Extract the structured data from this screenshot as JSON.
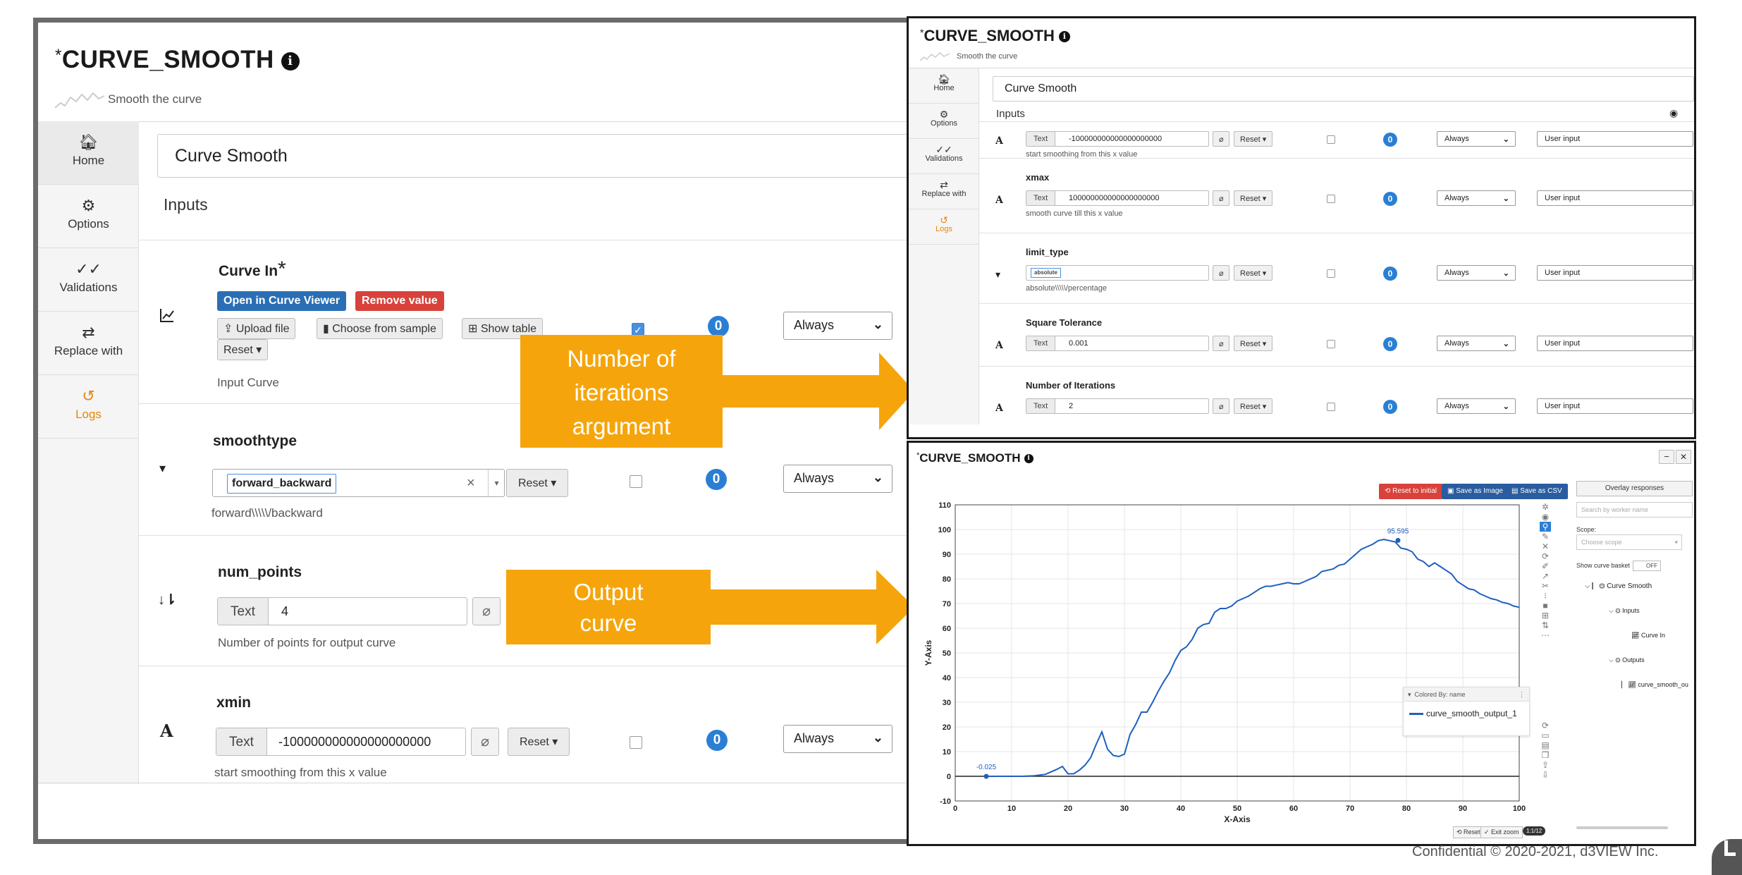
{
  "left": {
    "title": "CURVE_SMOOTH",
    "title_prefix": "*",
    "subtitle": "Smooth the curve",
    "sidebar": [
      {
        "label": "Home",
        "icon": "home-icon"
      },
      {
        "label": "Options",
        "icon": "gear-icon"
      },
      {
        "label": "Validations",
        "icon": "double-check-icon"
      },
      {
        "label": "Replace with",
        "icon": "swap-arrows-icon"
      },
      {
        "label": "Logs",
        "icon": "history-icon"
      }
    ],
    "name_value": "Curve Smooth",
    "inputs_label": "Inputs",
    "curve_in": {
      "title": "Curve In",
      "required_mark": "*",
      "open_viewer": "Open in Curve Viewer",
      "remove_value": "Remove value",
      "upload_file": "Upload file",
      "choose_sample": "Choose from sample",
      "show_table": "Show table",
      "reset": "Reset",
      "desc": "Input Curve",
      "badge": "0",
      "always": "Always"
    },
    "smoothtype": {
      "title": "smoothtype",
      "chip": "forward_backward",
      "clear": "×",
      "reset": "Reset",
      "desc": "forward\\\\\\\\\\/backward",
      "badge": "0",
      "always": "Always"
    },
    "num_points": {
      "title": "num_points",
      "prefix": "Text",
      "value": "4",
      "desc": "Number of points for output curve"
    },
    "xmin": {
      "title": "xmin",
      "prefix": "Text",
      "value": "-100000000000000000000",
      "reset": "Reset",
      "desc": "start smoothing from this x value",
      "badge": "0",
      "always": "Always"
    }
  },
  "arrows": {
    "top_label": [
      "Number of",
      "iterations",
      "argument"
    ],
    "bottom_label": [
      "Output",
      "curve"
    ]
  },
  "right_top": {
    "title_prefix": "*",
    "title": "CURVE_SMOOTH",
    "subtitle": "Smooth the curve",
    "sidebar": [
      {
        "label": "Home",
        "icon": "home-icon"
      },
      {
        "label": "Options",
        "icon": "gear-icon"
      },
      {
        "label": "Validations",
        "icon": "double-check-icon"
      },
      {
        "label": "Replace with",
        "icon": "swap-arrows-icon"
      },
      {
        "label": "Logs",
        "icon": "history-icon"
      }
    ],
    "name_value": "Curve Smooth",
    "inputs_label": "Inputs",
    "rows": [
      {
        "type_icon": "A",
        "title": "",
        "prefix": "Text",
        "value": "-100000000000000000000",
        "reset": "Reset",
        "desc": "start smoothing from this x value",
        "badge": "0",
        "always": "Always",
        "user_input": "User input"
      },
      {
        "type_icon": "A",
        "title": "xmax",
        "prefix": "Text",
        "value": "100000000000000000000",
        "reset": "Reset",
        "desc": "smooth curve till this x value",
        "badge": "0",
        "always": "Always",
        "user_input": "User input"
      },
      {
        "type_icon": "▾",
        "title": "limit_type",
        "prefix": "absolute",
        "value": "",
        "reset": "Reset",
        "desc": "absolute\\\\\\\\\\/percentage",
        "badge": "0",
        "always": "Always",
        "user_input": "User input"
      },
      {
        "type_icon": "A",
        "title": "Square Tolerance",
        "prefix": "Text",
        "value": "0.001",
        "reset": "Reset",
        "desc": "",
        "badge": "0",
        "always": "Always",
        "user_input": "User input"
      },
      {
        "type_icon": "A",
        "title": "Number of Iterations",
        "prefix": "Text",
        "value": "2",
        "reset": "Reset",
        "desc": "",
        "badge": "0",
        "always": "Always",
        "user_input": "User input"
      }
    ]
  },
  "right_bottom": {
    "title": "CURVE_SMOOTH",
    "title_prefix": "*",
    "reset_initial": "Reset to initial",
    "save_image": "Save as Image",
    "save_csv": "Save as CSV",
    "overlay": "Overlay responses",
    "search_placeholder": "Search by worker name",
    "scope_label": "Scope:",
    "scope_placeholder": "Choose scope",
    "show_basket": "Show curve basket",
    "off": "OFF",
    "tree": {
      "root": "Curve Smooth",
      "inputs": "Inputs",
      "curve_in": "Curve In",
      "outputs": "Outputs",
      "output": "curve_smooth_ou"
    },
    "legend_header": "Colored By: name",
    "legend_item": "curve_smooth_output_1",
    "bottom_reset": "Reset",
    "exit_zoom": "Exit zoom",
    "zoom_badge": "1:1/12"
  },
  "chart_data": {
    "type": "line",
    "title": "",
    "xlabel": "X-Axis",
    "ylabel": "Y-Axis",
    "xlim": [
      0,
      100
    ],
    "ylim": [
      -10,
      110
    ],
    "xticks": [
      0,
      10,
      20,
      30,
      40,
      50,
      60,
      70,
      80,
      90,
      100
    ],
    "yticks": [
      -10,
      0,
      10,
      20,
      30,
      40,
      50,
      60,
      70,
      80,
      90,
      100,
      110
    ],
    "series": [
      {
        "name": "curve_smooth_output_1",
        "color": "#1f5fbf",
        "x": [
          5.5,
          8,
          10,
          12,
          14,
          16,
          17,
          18,
          19,
          20,
          21,
          22,
          23,
          24,
          25,
          26,
          27,
          28,
          29,
          30,
          31,
          32,
          33,
          34,
          35,
          36,
          37,
          38,
          39,
          40,
          41,
          42,
          43,
          44,
          45,
          46,
          47,
          48,
          49,
          50,
          51,
          52,
          53,
          54,
          55,
          56,
          57,
          58,
          59,
          60,
          61,
          62,
          63,
          64,
          65,
          66,
          67,
          68,
          69,
          70,
          71,
          72,
          73,
          74,
          75,
          76,
          77,
          78,
          79,
          80,
          81,
          82,
          83,
          84,
          85,
          86,
          87,
          88,
          89,
          90,
          91,
          92,
          93,
          94,
          95,
          96,
          97,
          98,
          99,
          100
        ],
        "y": [
          -0.025,
          0,
          0,
          0,
          0.2,
          0.8,
          1.8,
          2.8,
          4,
          1,
          1,
          2.5,
          4.5,
          7.5,
          13,
          18,
          11,
          8.5,
          8,
          9,
          17,
          21,
          26,
          26,
          30,
          34.5,
          38.5,
          42,
          47,
          51,
          52.5,
          55.5,
          60,
          61.5,
          62,
          66.5,
          68,
          68,
          69,
          71,
          72,
          73,
          74.5,
          76,
          77,
          77,
          77.5,
          78,
          78.5,
          78,
          78,
          79,
          80,
          81,
          83,
          83.5,
          84,
          85.5,
          86,
          88,
          90,
          92,
          93,
          94,
          95.5,
          96,
          95.5,
          95,
          92.5,
          92,
          91,
          88,
          87,
          85,
          86.5,
          85,
          83.5,
          82,
          79,
          77.5,
          76,
          75.5,
          74,
          73,
          72,
          71.5,
          70.5,
          70,
          69,
          68.5
        ],
        "labels": [
          {
            "x": 5.5,
            "y": -0.025,
            "text": "-0.025"
          },
          {
            "x": 78.5,
            "y": 95.595,
            "text": "95.595"
          }
        ]
      }
    ],
    "legend": "top-right",
    "grid": true
  },
  "footer": "Confidential © 2020-2021, d3VIEW Inc."
}
